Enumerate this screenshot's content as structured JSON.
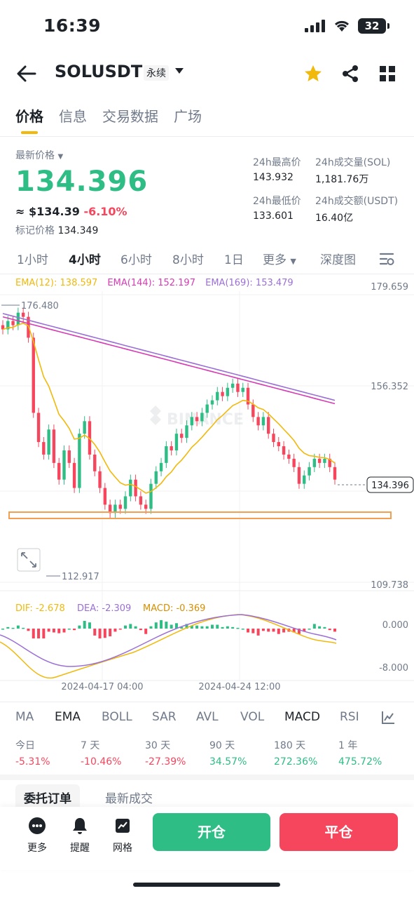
{
  "status": {
    "time": "16:39",
    "battery": "32"
  },
  "header": {
    "symbol": "SOLUSDT",
    "contract_type": "永续"
  },
  "tabs": [
    {
      "label": "价格",
      "active": true
    },
    {
      "label": "信息",
      "active": false
    },
    {
      "label": "交易数据",
      "active": false
    },
    {
      "label": "广场",
      "active": false
    }
  ],
  "price": {
    "last_label": "最新价格",
    "last": "134.396",
    "usd_approx": "≈ $134.39",
    "change_pct": "-6.10%",
    "mark_label": "标记价格",
    "mark": "134.349"
  },
  "stats": {
    "high_label": "24h最高价",
    "high": "143.932",
    "low_label": "24h最低价",
    "low": "133.601",
    "vol_label": "24h成交量(SOL)",
    "vol": "1,181.76万",
    "turnover_label": "24h成交额(USDT)",
    "turnover": "16.40亿"
  },
  "timeframes": [
    {
      "label": "1小时",
      "active": false
    },
    {
      "label": "4小时",
      "active": true
    },
    {
      "label": "6小时",
      "active": false
    },
    {
      "label": "8小时",
      "active": false
    },
    {
      "label": "1日",
      "active": false
    },
    {
      "label": "更多",
      "active": false
    },
    {
      "label": "深度图",
      "active": false
    }
  ],
  "ema_legend": {
    "ema12": "EMA(12): 138.597",
    "ema144": "EMA(144): 152.197",
    "ema169": "EMA(169): 153.479"
  },
  "macd_legend": {
    "dif": "DIF: -2.678",
    "dea": "DEA: -2.309",
    "macd": "MACD: -0.369"
  },
  "indicators": [
    {
      "label": "MA",
      "active": false
    },
    {
      "label": "EMA",
      "active": true
    },
    {
      "label": "BOLL",
      "active": false
    },
    {
      "label": "SAR",
      "active": false
    },
    {
      "label": "AVL",
      "active": false
    },
    {
      "label": "VOL",
      "active": false
    },
    {
      "label": "MACD",
      "active": true
    },
    {
      "label": "RSI",
      "active": false
    }
  ],
  "performance": [
    {
      "label": "今日",
      "value": "-5.31%",
      "dir": "neg"
    },
    {
      "label": "7 天",
      "value": "-10.46%",
      "dir": "neg"
    },
    {
      "label": "30 天",
      "value": "-27.39%",
      "dir": "neg"
    },
    {
      "label": "90 天",
      "value": "34.57%",
      "dir": "pos"
    },
    {
      "label": "180 天",
      "value": "272.36%",
      "dir": "pos"
    },
    {
      "label": "1 年",
      "value": "475.72%",
      "dir": "pos"
    }
  ],
  "order_tabs": [
    {
      "label": "委托订单",
      "active": true
    },
    {
      "label": "最新成交",
      "active": false
    }
  ],
  "bottom_nav": {
    "more": "更多",
    "alert": "提醒",
    "grid": "网格",
    "open": "开仓",
    "close": "平仓"
  },
  "colors": {
    "up": "#2ebd85",
    "down": "#f6465d",
    "accent": "#f0b90b",
    "ema12": "#f0b90b",
    "ema144": "#d63bb5",
    "ema169": "#9b6fd6"
  },
  "chart_data": {
    "type": "candlestick",
    "title": "",
    "y_axis_labels": [
      "179.659",
      "156.352",
      "109.738"
    ],
    "ylim": [
      109.738,
      179.659
    ],
    "x_axis_labels": [
      "2024-04-17 04:00",
      "2024-04-24 12:00"
    ],
    "annotations": {
      "high": "176.480",
      "low": "112.917",
      "last_price_tag": "134.396"
    },
    "series_close_approx": [
      170,
      172,
      171,
      174,
      173,
      168,
      150,
      143,
      140,
      146,
      138,
      134,
      141,
      138,
      132,
      145,
      148,
      140,
      136,
      132,
      128,
      126,
      128,
      127,
      130,
      134,
      130,
      128,
      127,
      133,
      136,
      138,
      142,
      141,
      145,
      144,
      147,
      149,
      148,
      150,
      152,
      153,
      155,
      154,
      156,
      157,
      155,
      156,
      152,
      149,
      147,
      149,
      145,
      143,
      142,
      140,
      139,
      137,
      133,
      135,
      137,
      139,
      138,
      139,
      137,
      134
    ],
    "macd": {
      "y_axis_labels": [
        "0.000",
        "-8.000"
      ],
      "dif_label": "DIF: -2.678",
      "dea_label": "DEA: -2.309",
      "macd_label": "MACD: -0.369"
    }
  }
}
